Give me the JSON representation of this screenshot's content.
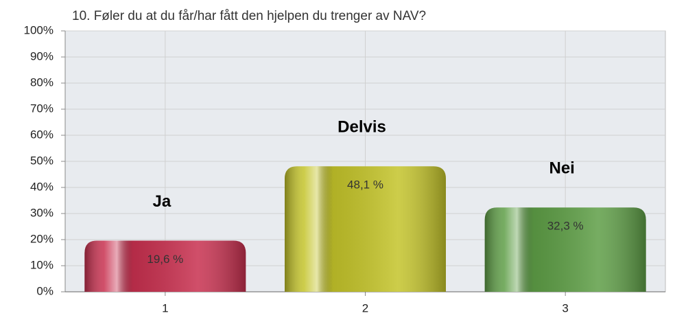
{
  "chart_data": {
    "type": "bar",
    "title": "10. Føler du at du får/har fått den hjelpen du trenger av NAV?",
    "categories": [
      "1",
      "2",
      "3"
    ],
    "values": [
      19.6,
      48.1,
      32.3
    ],
    "value_labels": [
      "19,6 %",
      "48,1 %",
      "32,3 %"
    ],
    "annotations": [
      "Ja",
      "Delvis",
      "Nei"
    ],
    "colors": [
      "#c8304f",
      "#c4c42a",
      "#5e9e46"
    ],
    "ylim": [
      0,
      100
    ],
    "yticks": [
      {
        "value": 0,
        "label": "0%"
      },
      {
        "value": 10,
        "label": "10%"
      },
      {
        "value": 20,
        "label": "20%"
      },
      {
        "value": 30,
        "label": "30%"
      },
      {
        "value": 40,
        "label": "40%"
      },
      {
        "value": 50,
        "label": "50%"
      },
      {
        "value": 60,
        "label": "60%"
      },
      {
        "value": 70,
        "label": "70%"
      },
      {
        "value": 80,
        "label": "80%"
      },
      {
        "value": 90,
        "label": "90%"
      },
      {
        "value": 100,
        "label": "100%"
      }
    ],
    "grid": true
  }
}
